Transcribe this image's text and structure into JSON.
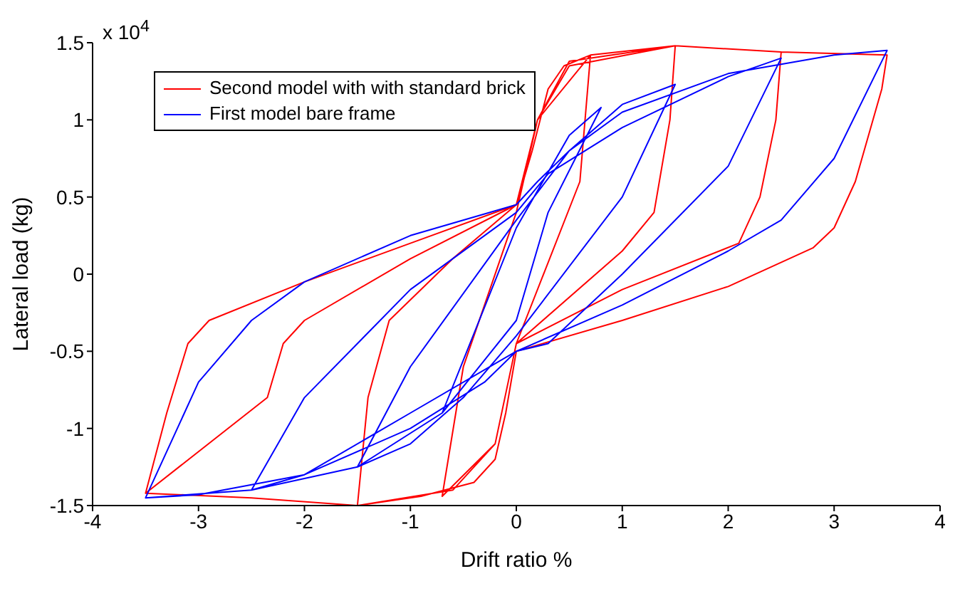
{
  "chart_data": {
    "type": "line",
    "xlabel": "Drift ratio %",
    "ylabel": "Lateral load (kg)",
    "annotations": [
      "x 10$^{4}$"
    ],
    "xlim": [
      -4,
      4
    ],
    "xticks": [
      -4,
      -3,
      -2,
      -1,
      0,
      1,
      2,
      3,
      4
    ],
    "ylim": [
      -1.5,
      1.5
    ],
    "yticks": [
      -1.5,
      -1,
      -0.5,
      0,
      0.5,
      1,
      1.5
    ],
    "grid": false,
    "legend": "top left",
    "marker": "none",
    "line_style": "solid",
    "series": [
      {
        "name": "Second model with with standard brick",
        "color": "#ff0000",
        "x": [
          -3.5,
          -3.3,
          -3.1,
          -2.9,
          -2,
          -1,
          0,
          0.15,
          0.3,
          0.45,
          0.7,
          1.5,
          2.5,
          3.5,
          3.45,
          3.2,
          3.0,
          2.8,
          2,
          1,
          0,
          -0.1,
          -0.2,
          -0.4,
          -0.9,
          -1.5,
          -2.5,
          -3.5,
          -2.35,
          -2.2,
          -2.0,
          -1,
          0,
          0.2,
          0.5,
          1.5,
          2.5,
          2.45,
          2.3,
          2.1,
          1,
          0,
          -0.2,
          -0.6,
          -1.5,
          -1.4,
          -1.2,
          -0.6,
          0,
          0.2,
          0.5,
          1.5,
          1.45,
          1.3,
          1.0,
          0,
          -0.2,
          -0.7,
          -0.5,
          0,
          0.2,
          0.7,
          0.6,
          0,
          -0.2,
          -0.7
        ],
        "values": [
          -1.42,
          -0.9,
          -0.45,
          -0.3,
          -0.05,
          0.2,
          0.45,
          0.8,
          1.2,
          1.35,
          1.42,
          1.48,
          1.44,
          1.42,
          1.2,
          0.6,
          0.3,
          0.17,
          -0.08,
          -0.3,
          -0.5,
          -0.9,
          -1.2,
          -1.35,
          -1.44,
          -1.5,
          -1.45,
          -1.42,
          -0.8,
          -0.45,
          -0.3,
          0.1,
          0.45,
          1.0,
          1.35,
          1.48,
          1.44,
          1.0,
          0.5,
          0.2,
          -0.1,
          -0.45,
          -1.1,
          -1.4,
          -1.5,
          -0.8,
          -0.3,
          0.1,
          0.45,
          1.0,
          1.38,
          1.48,
          1.0,
          0.4,
          0.15,
          -0.45,
          -1.1,
          -1.44,
          -0.6,
          0.4,
          1.0,
          1.42,
          0.6,
          -0.45,
          -1.1,
          -1.44
        ]
      },
      {
        "name": "First model bare frame",
        "color": "#0000ff",
        "x": [
          -3.5,
          -3,
          -2.5,
          -2,
          -1,
          0,
          0.2,
          0.5,
          1,
          2,
          3,
          3.5,
          3,
          2.5,
          2,
          1,
          0,
          -0.3,
          -1,
          -2,
          -3,
          -3.5,
          -2.5,
          -2,
          -1,
          0,
          0.3,
          1,
          2,
          2.5,
          2,
          1,
          0.3,
          0,
          -1,
          -2,
          -2.5,
          -1.5,
          -1,
          0,
          0.5,
          1,
          1.5,
          1,
          0,
          -0.5,
          -1,
          -1.5,
          -0.7,
          0,
          0.5,
          0.8,
          0.3,
          0,
          -0.7
        ],
        "values": [
          -1.45,
          -0.7,
          -0.3,
          -0.05,
          0.25,
          0.45,
          0.6,
          0.8,
          1.05,
          1.3,
          1.42,
          1.45,
          0.75,
          0.35,
          0.15,
          -0.2,
          -0.5,
          -0.7,
          -1.0,
          -1.3,
          -1.43,
          -1.45,
          -1.4,
          -0.8,
          -0.1,
          0.4,
          0.65,
          0.95,
          1.28,
          1.4,
          0.7,
          0.0,
          -0.45,
          -0.5,
          -0.9,
          -1.3,
          -1.4,
          -1.25,
          -0.6,
          0.35,
          0.8,
          1.1,
          1.23,
          0.5,
          -0.4,
          -0.8,
          -1.1,
          -1.25,
          -0.9,
          0.3,
          0.9,
          1.08,
          0.4,
          -0.3,
          -0.9
        ]
      }
    ]
  }
}
